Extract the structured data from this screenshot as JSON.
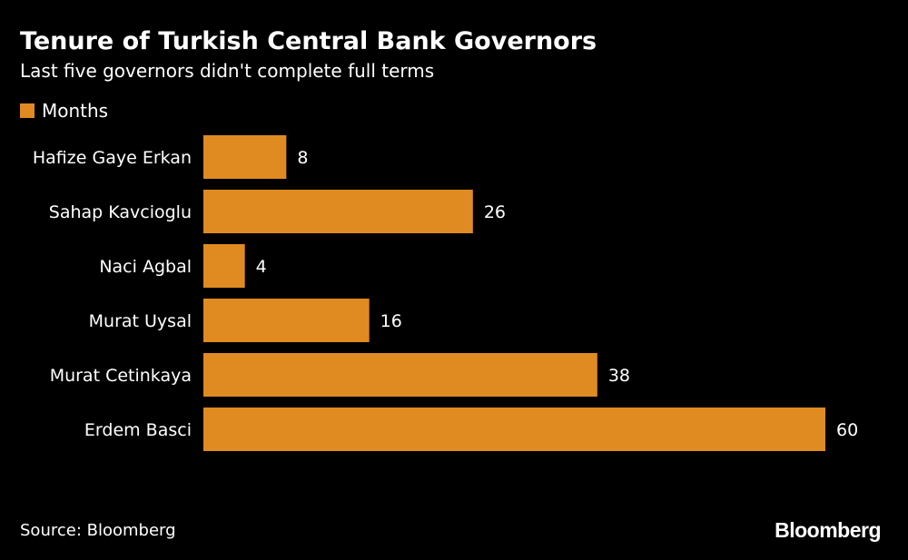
{
  "chart_data": {
    "type": "bar",
    "orientation": "horizontal",
    "title": "Tenure of Turkish Central Bank Governors",
    "subtitle": "Last five governors didn't complete full terms",
    "categories": [
      "Hafize Gaye Erkan",
      "Sahap Kavcioglu",
      "Naci Agbal",
      "Murat Uysal",
      "Murat Cetinkaya",
      "Erdem Basci"
    ],
    "series": [
      {
        "name": "Months",
        "values": [
          8,
          26,
          4,
          16,
          38,
          60
        ]
      }
    ],
    "xlim": [
      0,
      60
    ],
    "grid": false,
    "legend": "top-left",
    "bar_color": "#E08A22",
    "data_labels": true
  },
  "footer": {
    "source": "Source: Bloomberg",
    "brand": "Bloomberg"
  },
  "colors": {
    "background": "#000000",
    "text": "#FFFFFF",
    "bar": "#E08A22"
  }
}
